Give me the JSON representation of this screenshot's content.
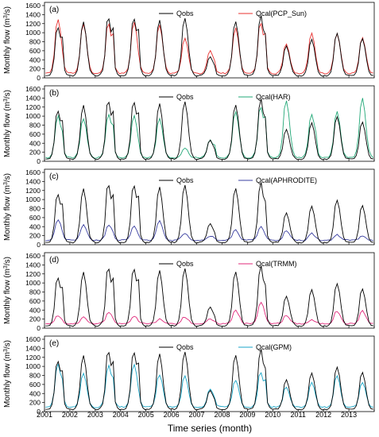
{
  "figure": {
    "xlabel": "Time series (month)",
    "x_ticks": [
      "2001",
      "2002",
      "2003",
      "2004",
      "2005",
      "2006",
      "2007",
      "2008",
      "2009",
      "2010",
      "2011",
      "2012",
      "2013"
    ],
    "ylabel_main": "Monthly flow (m",
    "ylabel_sup": "3",
    "ylabel_end": "/s)"
  },
  "chart_data": [
    {
      "type": "line",
      "panel": "(a)",
      "x_range": [
        "2001-01",
        "2013-12"
      ],
      "ylim": [
        0,
        1600
      ],
      "y_ticks": [
        0,
        200,
        400,
        600,
        800,
        1000,
        1200,
        1400,
        1600
      ],
      "series": [
        {
          "name": "Qobs",
          "color": "#000000",
          "role": "obs"
        },
        {
          "name": "Qcal(PCP_Sun)",
          "color": "#e8302f",
          "role": "sim",
          "peaks": [
            1300,
            1200,
            1180,
            1230,
            1180,
            880,
            600,
            1100,
            1200,
            750,
            1000,
            980,
            880,
            800
          ],
          "secondary": [
            650,
            0,
            1100,
            0,
            0,
            350,
            420,
            0,
            1100,
            0,
            0,
            0,
            0,
            0
          ],
          "base": 100
        }
      ],
      "obs_peaks": [
        1120,
        1240,
        1300,
        1310,
        1280,
        1320,
        460,
        1260,
        1370,
        720,
        860,
        1000,
        880,
        950
      ],
      "obs_secondary": [
        1000,
        0,
        1240,
        1200,
        0,
        300,
        300,
        0,
        1080,
        0,
        0,
        0,
        0,
        480
      ],
      "obs_base": 50
    },
    {
      "type": "line",
      "panel": "(b)",
      "x_range": [
        "2001-01",
        "2013-12"
      ],
      "ylim": [
        0,
        1600
      ],
      "y_ticks": [
        0,
        200,
        400,
        600,
        800,
        1000,
        1200,
        1400,
        1600
      ],
      "series": [
        {
          "name": "Qobs",
          "color": "#000000",
          "role": "obs"
        },
        {
          "name": "Qcal(HAR)",
          "color": "#22a877",
          "role": "sim",
          "peaks": [
            1000,
            950,
            1050,
            1020,
            950,
            300,
            480,
            1100,
            1200,
            1350,
            1050,
            1100,
            1400,
            1500
          ],
          "secondary": [
            720,
            0,
            880,
            0,
            0,
            0,
            400,
            0,
            1100,
            0,
            700,
            0,
            0,
            1040
          ],
          "base": 80
        }
      ],
      "obs_peaks": [
        1120,
        1240,
        1300,
        1310,
        1280,
        1320,
        460,
        1260,
        1370,
        720,
        860,
        1000,
        880,
        950
      ],
      "obs_secondary": [
        1000,
        0,
        1240,
        1200,
        0,
        300,
        300,
        0,
        1080,
        0,
        0,
        0,
        0,
        480
      ],
      "obs_base": 50
    },
    {
      "type": "line",
      "panel": "(c)",
      "x_range": [
        "2001-01",
        "2013-12"
      ],
      "ylim": [
        0,
        1600
      ],
      "y_ticks": [
        0,
        200,
        400,
        600,
        800,
        1000,
        1200,
        1400,
        1600
      ],
      "series": [
        {
          "name": "Qobs",
          "color": "#000000",
          "role": "obs"
        },
        {
          "name": "Qcal(APHRODITE)",
          "color": "#3a3fa0",
          "role": "sim",
          "peaks": [
            550,
            430,
            440,
            400,
            530,
            260,
            200,
            320,
            400,
            300,
            250,
            220,
            200,
            280
          ],
          "secondary": [
            300,
            0,
            320,
            0,
            0,
            0,
            150,
            0,
            0,
            0,
            0,
            0,
            0,
            150
          ],
          "base": 100
        }
      ],
      "obs_peaks": [
        1120,
        1240,
        1300,
        1310,
        1280,
        1320,
        460,
        1260,
        1370,
        720,
        860,
        1000,
        880,
        950
      ],
      "obs_secondary": [
        1000,
        0,
        1240,
        1200,
        0,
        300,
        300,
        0,
        1080,
        0,
        0,
        0,
        0,
        480
      ],
      "obs_base": 50
    },
    {
      "type": "line",
      "panel": "(d)",
      "x_range": [
        "2001-01",
        "2013-12"
      ],
      "ylim": [
        0,
        1600
      ],
      "y_ticks": [
        0,
        200,
        400,
        600,
        800,
        1000,
        1200,
        1400,
        1600
      ],
      "series": [
        {
          "name": "Qobs",
          "color": "#000000",
          "role": "obs"
        },
        {
          "name": "Qcal(TRMM)",
          "color": "#e0287a",
          "role": "sim",
          "peaks": [
            280,
            240,
            350,
            260,
            200,
            250,
            200,
            400,
            580,
            280,
            180,
            380,
            380,
            520
          ],
          "secondary": [
            150,
            0,
            200,
            0,
            150,
            0,
            0,
            280,
            0,
            0,
            0,
            150,
            0,
            0
          ],
          "base": 100
        }
      ],
      "obs_peaks": [
        1120,
        1240,
        1300,
        1310,
        1280,
        1320,
        460,
        1260,
        1370,
        720,
        860,
        1000,
        880,
        950
      ],
      "obs_secondary": [
        1000,
        0,
        1240,
        1200,
        0,
        300,
        300,
        0,
        1080,
        0,
        0,
        0,
        0,
        480
      ],
      "obs_base": 50
    },
    {
      "type": "line",
      "panel": "(e)",
      "x_range": [
        "2001-01",
        "2013-12"
      ],
      "ylim": [
        0,
        1600
      ],
      "y_ticks": [
        0,
        200,
        400,
        600,
        800,
        1000,
        1200,
        1400,
        1600
      ],
      "series": [
        {
          "name": "Qobs",
          "color": "#000000",
          "role": "obs"
        },
        {
          "name": "Qcal(GPM)",
          "color": "#19a6c8",
          "role": "sim",
          "peaks": [
            1050,
            840,
            1020,
            1050,
            820,
            780,
            500,
            700,
            850,
            550,
            640,
            800,
            640,
            600
          ],
          "secondary": [
            780,
            0,
            830,
            0,
            0,
            0,
            350,
            0,
            780,
            0,
            0,
            0,
            0,
            580
          ],
          "base": 100
        }
      ],
      "obs_peaks": [
        1120,
        1240,
        1300,
        1310,
        1280,
        1320,
        460,
        1260,
        1370,
        720,
        860,
        1000,
        880,
        950
      ],
      "obs_secondary": [
        1000,
        0,
        1240,
        1200,
        0,
        300,
        300,
        0,
        1080,
        0,
        0,
        0,
        0,
        480
      ],
      "obs_base": 50
    }
  ]
}
